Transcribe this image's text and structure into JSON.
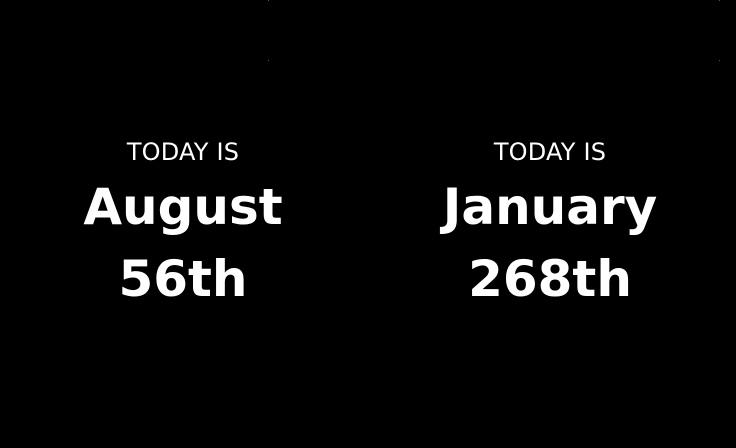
{
  "colors": {
    "background": "#000000",
    "text": "#ffffff"
  },
  "panels": [
    {
      "label": "TODAY IS",
      "month": "August",
      "day": "56th"
    },
    {
      "label": "TODAY IS",
      "month": "January",
      "day": "268th"
    }
  ]
}
